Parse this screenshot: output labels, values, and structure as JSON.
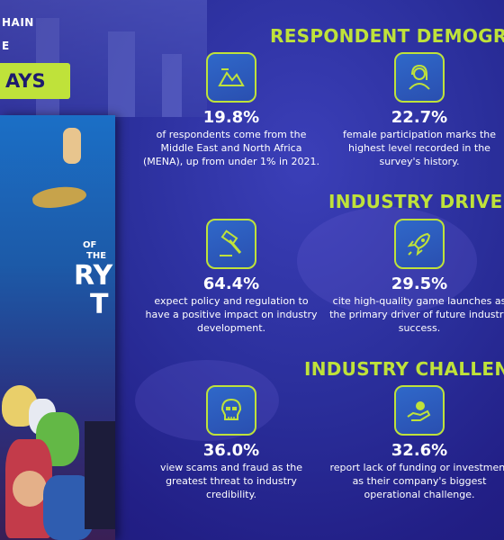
{
  "header": {
    "line1": "HAIN",
    "line2": "E",
    "badge_text": "AYS"
  },
  "cover": {
    "title_line1": "OF",
    "title_line2": "THE",
    "title_line3": "RY",
    "title_line4": "T"
  },
  "sections": {
    "demographics_title": "RESPONDENT DEMOGRA",
    "drivers_title": "INDUSTRY DRIVER",
    "challenges_title": "INDUSTRY CHALLENG"
  },
  "stats": [
    {
      "value": "19.8%",
      "desc": "of respondents come from the Middle East and North Africa (MENA), up from under 1% in 2021.",
      "icon": "mountains-map-icon"
    },
    {
      "value": "22.7%",
      "desc": "female participation marks the highest level recorded in the survey's history.",
      "icon": "female-user-icon"
    },
    {
      "value": "64.4%",
      "desc": "expect policy and regulation to have a positive impact on industry development.",
      "icon": "gavel-icon"
    },
    {
      "value": "29.5%",
      "desc": "cite high-quality game launches as the primary driver of future industry success.",
      "icon": "rocket-icon"
    },
    {
      "value": "36.0%",
      "desc": "view scams and fraud as the greatest threat to industry credibility.",
      "icon": "skull-icon"
    },
    {
      "value": "32.6%",
      "desc": "report lack of funding or investment as their company's biggest operational challenge.",
      "icon": "funding-hand-icon"
    }
  ],
  "colors": {
    "accent": "#bfe23a",
    "background": "#2a2e9a",
    "icon_fill": "#2f68c9"
  }
}
